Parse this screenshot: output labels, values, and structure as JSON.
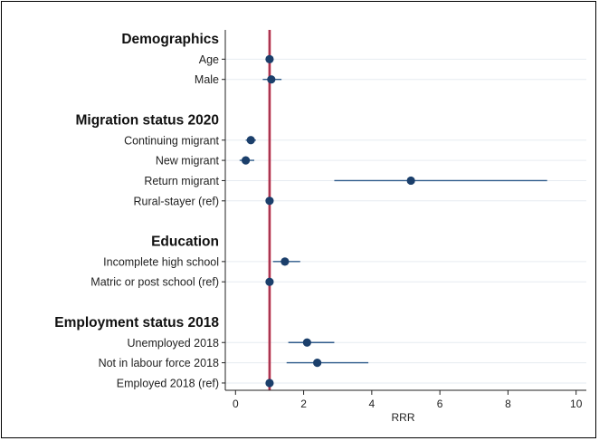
{
  "chart_data": {
    "type": "scatter",
    "subtype": "coefficient-plot",
    "title": "",
    "xlabel": "RRR",
    "ylabel": "",
    "xlim": [
      -0.3,
      10.3
    ],
    "xticks": [
      0,
      2,
      4,
      6,
      8,
      10
    ],
    "reference_line": 1,
    "grid": true,
    "legend": "none",
    "rows": [
      {
        "kind": "header",
        "label": "Demographics"
      },
      {
        "kind": "item",
        "label": "Age",
        "estimate": 1.0,
        "ci": [
          0.98,
          1.02
        ]
      },
      {
        "kind": "item",
        "label": "Male",
        "estimate": 1.05,
        "ci": [
          0.8,
          1.35
        ]
      },
      {
        "kind": "spacer"
      },
      {
        "kind": "header",
        "label": "Migration status 2020"
      },
      {
        "kind": "item",
        "label": "Continuing migrant",
        "estimate": 0.45,
        "ci": [
          0.3,
          0.6
        ]
      },
      {
        "kind": "item",
        "label": "New migrant",
        "estimate": 0.3,
        "ci": [
          0.12,
          0.55
        ]
      },
      {
        "kind": "item",
        "label": "Return migrant",
        "estimate": 5.15,
        "ci": [
          2.9,
          9.15
        ]
      },
      {
        "kind": "item",
        "label": "Rural-stayer (ref)",
        "estimate": 1.0,
        "ci": [
          1.0,
          1.0
        ]
      },
      {
        "kind": "spacer"
      },
      {
        "kind": "header",
        "label": "Education"
      },
      {
        "kind": "item",
        "label": "Incomplete high school",
        "estimate": 1.45,
        "ci": [
          1.1,
          1.9
        ]
      },
      {
        "kind": "item",
        "label": "Matric or post school (ref)",
        "estimate": 1.0,
        "ci": [
          1.0,
          1.0
        ]
      },
      {
        "kind": "spacer"
      },
      {
        "kind": "header",
        "label": "Employment status 2018"
      },
      {
        "kind": "item",
        "label": "Unemployed 2018",
        "estimate": 2.1,
        "ci": [
          1.55,
          2.9
        ]
      },
      {
        "kind": "item",
        "label": "Not in labour force 2018",
        "estimate": 2.4,
        "ci": [
          1.5,
          3.9
        ]
      },
      {
        "kind": "item",
        "label": "Employed 2018 (ref)",
        "estimate": 1.0,
        "ci": [
          1.0,
          1.0
        ]
      }
    ]
  },
  "colors": {
    "point": "#1b3f6b",
    "ci": "#2d5a8a",
    "refline": "#c8102e",
    "refline_center": "#7a6a85",
    "grid": "#e6ebf1",
    "axis": "#222222"
  }
}
